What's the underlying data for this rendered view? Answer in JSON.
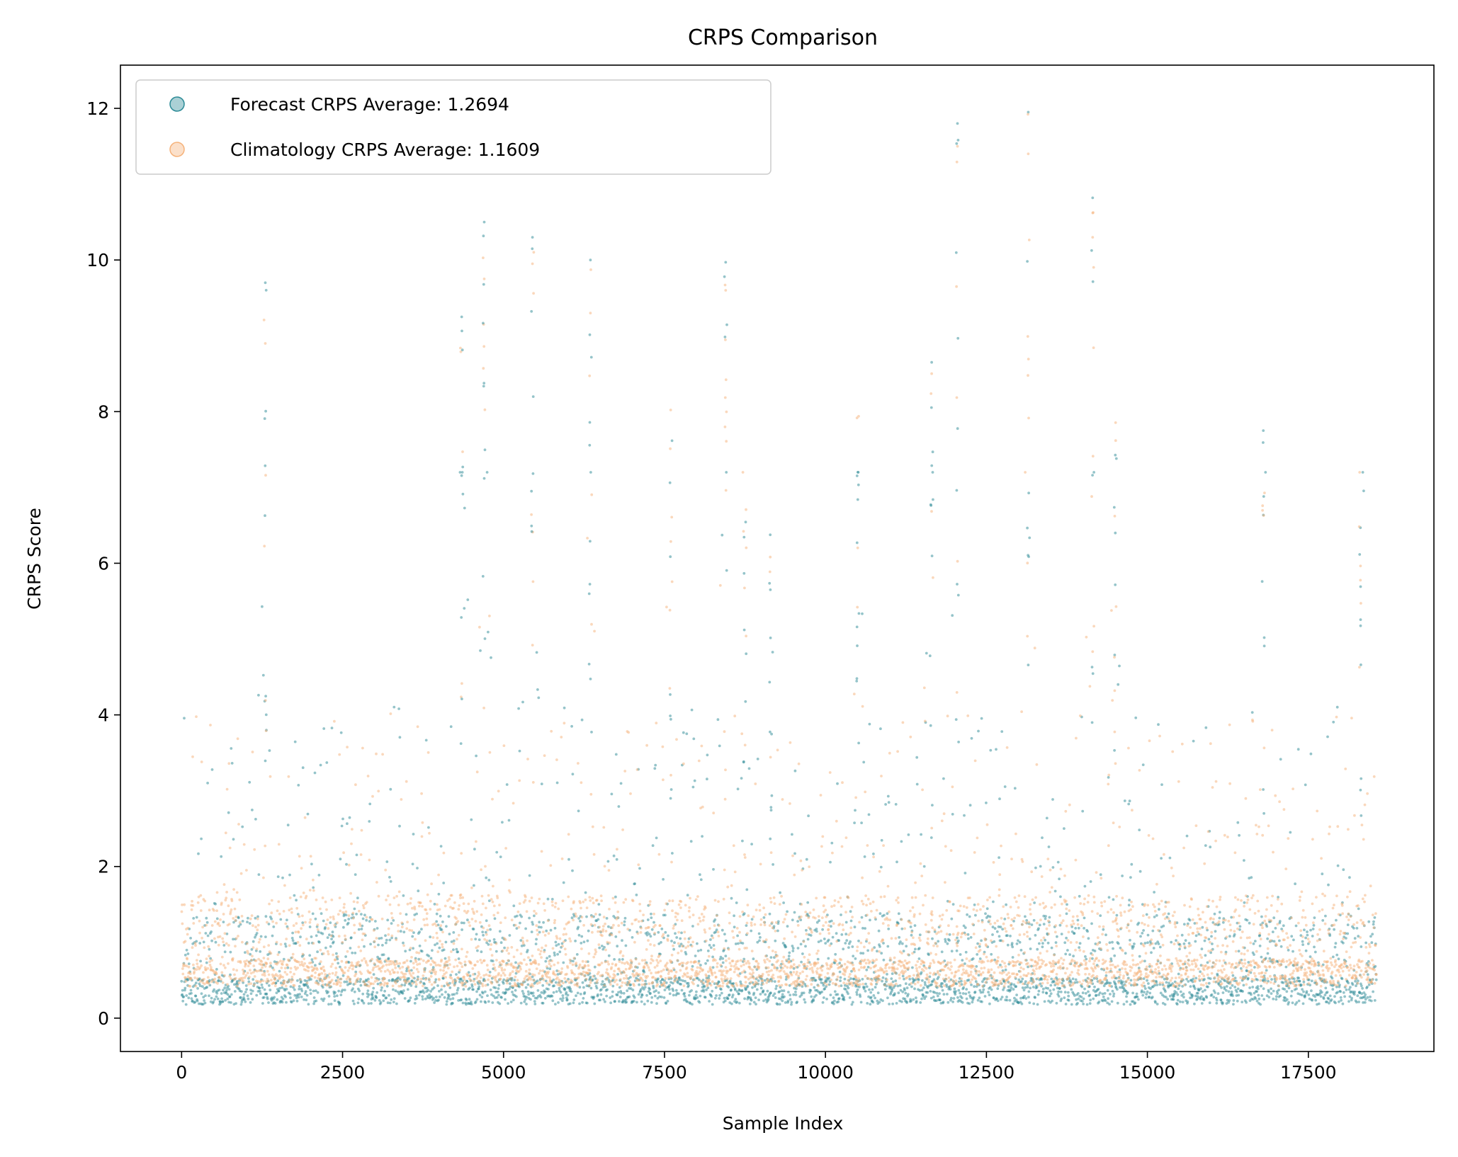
{
  "chart_data": {
    "type": "scatter",
    "title": "CRPS Comparison",
    "xlabel": "Sample Index",
    "ylabel": "CRPS Score",
    "xlim": [
      -950,
      19450
    ],
    "ylim": [
      -0.44,
      12.57
    ],
    "x_ticks": [
      0,
      2500,
      5000,
      7500,
      10000,
      12500,
      15000,
      17500
    ],
    "y_ticks": [
      0,
      2,
      4,
      6,
      8,
      10,
      12
    ],
    "grid": false,
    "legend_position": "top-left",
    "n_samples": 18560,
    "series": [
      {
        "name": "Forecast CRPS Average: 1.2694",
        "color": "#2b8a96",
        "average": 1.2694,
        "notable_points": [
          {
            "x": 1300,
            "y": 9.7
          },
          {
            "x": 4350,
            "y": 9.25
          },
          {
            "x": 4700,
            "y": 10.5
          },
          {
            "x": 5450,
            "y": 10.3
          },
          {
            "x": 6350,
            "y": 10.0
          },
          {
            "x": 8450,
            "y": 9.97
          },
          {
            "x": 12050,
            "y": 11.8
          },
          {
            "x": 13150,
            "y": 11.95
          },
          {
            "x": 14150,
            "y": 10.82
          },
          {
            "x": 11650,
            "y": 8.65
          },
          {
            "x": 16800,
            "y": 7.75
          }
        ]
      },
      {
        "name": "Climatology CRPS Average: 1.1609",
        "color": "#f5b27a",
        "average": 1.1609,
        "notable_points": [
          {
            "x": 1300,
            "y": 8.9
          },
          {
            "x": 4700,
            "y": 9.75
          },
          {
            "x": 5450,
            "y": 9.95
          },
          {
            "x": 6350,
            "y": 9.3
          },
          {
            "x": 8450,
            "y": 9.6
          },
          {
            "x": 12050,
            "y": 11.5
          },
          {
            "x": 13150,
            "y": 11.4
          },
          {
            "x": 14150,
            "y": 10.3
          }
        ]
      }
    ],
    "spike_columns": [
      {
        "x": 1300,
        "max": 9.7
      },
      {
        "x": 4350,
        "max": 9.2
      },
      {
        "x": 4700,
        "max": 10.5
      },
      {
        "x": 5450,
        "max": 10.3
      },
      {
        "x": 6350,
        "max": 10.0
      },
      {
        "x": 7600,
        "max": 8.1
      },
      {
        "x": 8450,
        "max": 10.0
      },
      {
        "x": 8750,
        "max": 6.8
      },
      {
        "x": 9150,
        "max": 6.5
      },
      {
        "x": 10500,
        "max": 8.2
      },
      {
        "x": 11650,
        "max": 8.65
      },
      {
        "x": 12050,
        "max": 11.8
      },
      {
        "x": 13150,
        "max": 11.95
      },
      {
        "x": 14150,
        "max": 10.8
      },
      {
        "x": 14500,
        "max": 8.9
      },
      {
        "x": 16800,
        "max": 7.75
      },
      {
        "x": 18300,
        "max": 6.5
      }
    ]
  }
}
